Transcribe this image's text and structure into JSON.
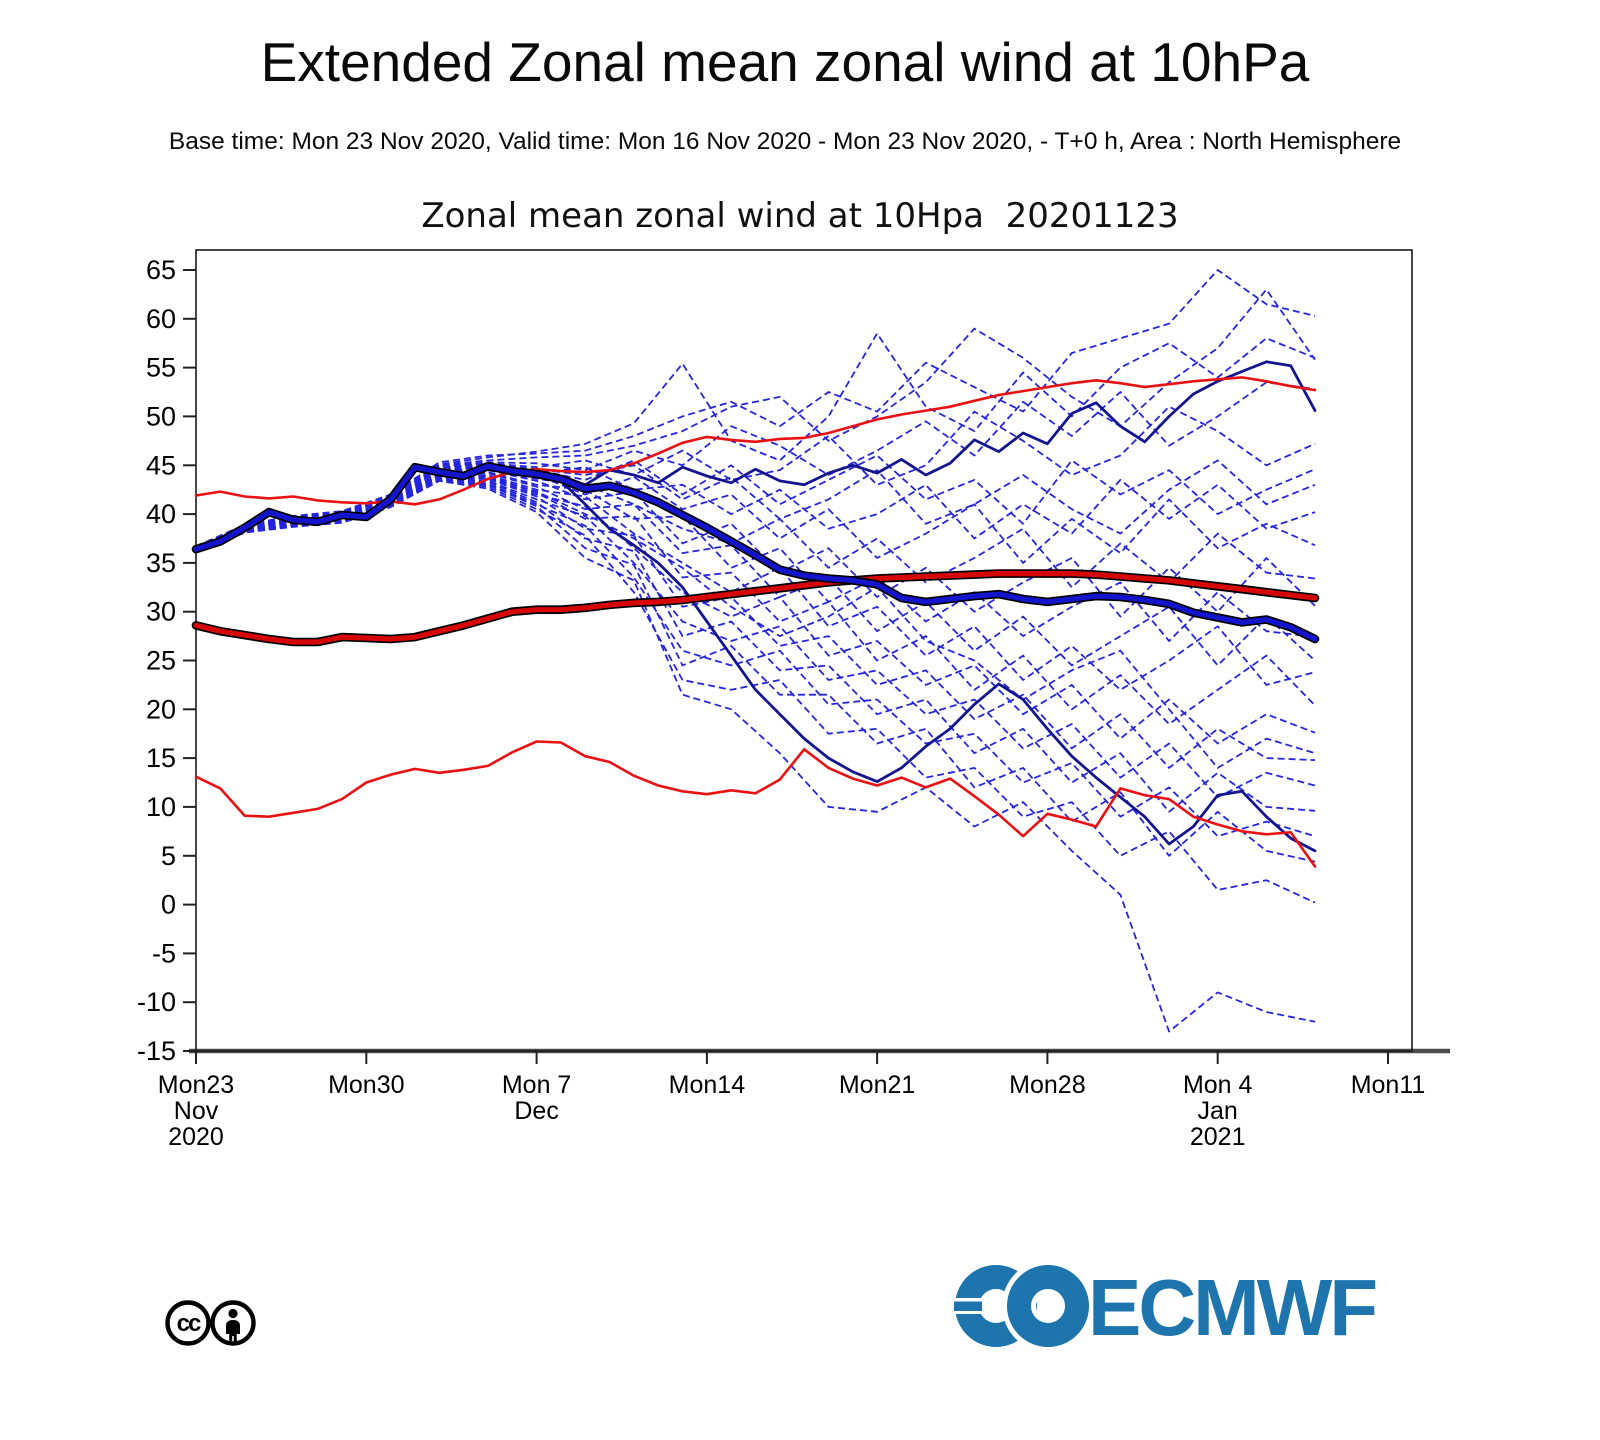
{
  "header": {
    "title": "Extended Zonal mean zonal wind at 10hPa",
    "subtitle": "Base time: Mon 23 Nov 2020, Valid time: Mon 16 Nov 2020 - Mon 23 Nov 2020, - T+0 h, Area : North Hemisphere"
  },
  "footer": {
    "license_name": "cc-by-license",
    "cc_label": "cc",
    "logo_text": "ECMWF",
    "logo_color": "#1e75ad"
  },
  "chart_data": {
    "type": "line",
    "title": "Zonal mean zonal wind at 10Hpa  20201123",
    "xlabel": "",
    "ylabel": "",
    "x_unit": "days since Mon 23 Nov 2020",
    "x_range_days": [
      0,
      49
    ],
    "ylim": [
      -15,
      65
    ],
    "ytick_step": 5,
    "grid": false,
    "legend": "none",
    "axis_color": "#1a1a1a",
    "x_axis_color": "#4d4d4d",
    "x_ticks": [
      {
        "day": 0,
        "label": "Mon23",
        "sub": [
          "Nov",
          "2020"
        ]
      },
      {
        "day": 7,
        "label": "Mon30",
        "sub": []
      },
      {
        "day": 14,
        "label": "Mon 7",
        "sub": [
          "Dec"
        ]
      },
      {
        "day": 21,
        "label": "Mon14",
        "sub": []
      },
      {
        "day": 28,
        "label": "Mon21",
        "sub": []
      },
      {
        "day": 35,
        "label": "Mon28",
        "sub": []
      },
      {
        "day": 42,
        "label": "Mon 4",
        "sub": [
          "Jan",
          "2021"
        ]
      },
      {
        "day": 49,
        "label": "Mon11",
        "sub": []
      }
    ],
    "series": [
      {
        "name": "control-b",
        "color": "#14148f",
        "width": 2.8,
        "outline": false,
        "day_step": 1,
        "values": [
          36.4,
          37.1,
          38.5,
          40.1,
          39.3,
          39.1,
          39.8,
          39.6,
          41.4,
          44.6,
          44.1,
          43.7,
          44.7,
          44.2,
          43.9,
          43.4,
          41.0,
          38.5,
          36.8,
          35.0,
          32.5,
          29.0,
          25.5,
          22.0,
          19.5,
          17.0,
          15.0,
          13.6,
          12.6,
          14.0,
          16.2,
          18.0,
          20.5,
          22.6,
          21.0,
          18.0,
          15.2,
          13.0,
          11.0,
          9.0,
          6.2,
          8.0,
          11.2,
          11.6,
          9.0,
          6.8,
          5.5
        ]
      },
      {
        "name": "control-a",
        "color": "#14148f",
        "width": 2.8,
        "outline": false,
        "day_step": 1,
        "values": [
          36.4,
          37.2,
          38.7,
          40.3,
          39.5,
          39.3,
          40.0,
          39.8,
          41.6,
          45.0,
          44.5,
          44.1,
          45.1,
          44.6,
          44.3,
          43.9,
          43.0,
          44.5,
          44.0,
          43.2,
          44.8,
          43.9,
          43.2,
          44.6,
          43.4,
          43.0,
          44.2,
          45.0,
          44.2,
          45.6,
          44.0,
          45.2,
          47.6,
          46.4,
          48.3,
          47.2,
          50.3,
          51.4,
          49.0,
          47.4,
          50.0,
          52.3,
          53.6,
          54.6,
          55.6,
          55.2,
          50.6
        ]
      },
      {
        "name": "climate-min",
        "color": "#e81212",
        "width": 2.6,
        "outline": false,
        "day_step": 1,
        "values": [
          13.1,
          11.9,
          9.1,
          9.0,
          9.4,
          9.8,
          10.8,
          12.5,
          13.3,
          13.9,
          13.5,
          13.8,
          14.2,
          15.6,
          16.7,
          16.6,
          15.2,
          14.6,
          13.2,
          12.2,
          11.6,
          11.3,
          11.7,
          11.4,
          12.8,
          15.9,
          14.0,
          12.9,
          12.2,
          13.0,
          12.0,
          12.9,
          11.1,
          9.2,
          7.0,
          9.3,
          8.7,
          8.0,
          11.9,
          11.2,
          10.8,
          9.0,
          8.2,
          7.5,
          7.2,
          7.4,
          3.9
        ]
      },
      {
        "name": "climate-max",
        "color": "#e81212",
        "width": 2.6,
        "outline": false,
        "day_step": 1,
        "values": [
          41.9,
          42.3,
          41.8,
          41.6,
          41.8,
          41.4,
          41.2,
          41.1,
          41.3,
          41.0,
          41.5,
          42.5,
          43.6,
          44.3,
          44.6,
          44.4,
          44.3,
          44.5,
          45.2,
          46.2,
          47.3,
          47.9,
          47.6,
          47.4,
          47.7,
          47.8,
          48.3,
          49.0,
          49.7,
          50.2,
          50.6,
          51.0,
          51.6,
          52.2,
          52.6,
          53.0,
          53.4,
          53.7,
          53.4,
          53.0,
          53.3,
          53.6,
          53.8,
          54.0,
          53.6,
          53.1,
          52.7
        ]
      },
      {
        "name": "climate-mean",
        "color": "#d60606",
        "width": 5.2,
        "outline": true,
        "day_step": 1,
        "values": [
          28.6,
          28.0,
          27.6,
          27.2,
          26.9,
          26.9,
          27.4,
          27.3,
          27.2,
          27.4,
          28.0,
          28.6,
          29.3,
          30.0,
          30.2,
          30.2,
          30.4,
          30.7,
          30.9,
          31.0,
          31.2,
          31.5,
          31.8,
          32.1,
          32.4,
          32.7,
          33.0,
          33.2,
          33.4,
          33.5,
          33.6,
          33.7,
          33.8,
          33.9,
          33.9,
          33.9,
          33.9,
          33.8,
          33.6,
          33.4,
          33.2,
          32.9,
          32.6,
          32.3,
          32.0,
          31.7,
          31.4
        ]
      },
      {
        "name": "ensemble-mean",
        "color": "#1414cd",
        "width": 5.2,
        "outline": true,
        "day_step": 1,
        "values": [
          36.4,
          37.2,
          38.6,
          40.2,
          39.4,
          39.2,
          39.9,
          39.7,
          41.5,
          44.8,
          44.3,
          43.9,
          44.9,
          44.4,
          44.1,
          43.6,
          42.6,
          42.9,
          42.2,
          41.2,
          39.9,
          38.6,
          37.2,
          35.8,
          34.3,
          33.7,
          33.4,
          33.2,
          32.8,
          31.4,
          31.0,
          31.3,
          31.6,
          31.8,
          31.3,
          31.0,
          31.3,
          31.6,
          31.5,
          31.2,
          30.8,
          29.9,
          29.4,
          28.9,
          29.2,
          28.4,
          27.2
        ]
      }
    ],
    "ensemble_members": {
      "name": "ensemble-members",
      "color": "#2525dc",
      "dash": "7 4",
      "width": 1.8,
      "day_step": 2,
      "values": [
        [
          36.7,
          38.9,
          39.8,
          40.3,
          42.0,
          45.3,
          46.0,
          46.2,
          46.5,
          48.0,
          50.0,
          51.5,
          49.0,
          52.5,
          50.5,
          55.5,
          53.0,
          50.5,
          56.5,
          58.0,
          59.5,
          65.0,
          61.5,
          60.3
        ],
        [
          36.6,
          38.8,
          39.7,
          40.2,
          41.9,
          45.1,
          45.8,
          46.4,
          47.2,
          49.3,
          55.4,
          47.5,
          45.5,
          50.0,
          58.5,
          51.0,
          48.5,
          54.5,
          50.0,
          55.0,
          57.5,
          54.0,
          58.0,
          56.0
        ],
        [
          36.6,
          38.8,
          39.6,
          40.1,
          41.8,
          45.0,
          45.5,
          45.8,
          46.0,
          47.0,
          48.5,
          51.0,
          52.0,
          47.5,
          50.0,
          53.5,
          59.0,
          56.0,
          52.0,
          49.0,
          53.5,
          57.0,
          63.0,
          55.8
        ],
        [
          36.5,
          38.7,
          39.6,
          40.0,
          41.7,
          44.9,
          45.3,
          45.2,
          44.5,
          46.5,
          45.0,
          49.0,
          47.0,
          44.0,
          46.5,
          49.5,
          46.0,
          51.5,
          48.0,
          52.5,
          47.0,
          50.0,
          53.5,
          52.8
        ],
        [
          36.5,
          38.7,
          39.5,
          40.0,
          41.6,
          44.8,
          45.2,
          44.8,
          45.5,
          44.0,
          46.5,
          43.5,
          44.5,
          48.0,
          43.0,
          45.0,
          50.5,
          47.5,
          44.0,
          46.0,
          51.0,
          48.5,
          45.0,
          47.2
        ],
        [
          36.5,
          38.7,
          39.5,
          40.0,
          41.7,
          44.8,
          45.1,
          44.6,
          44.0,
          45.0,
          41.5,
          43.8,
          39.5,
          41.5,
          44.5,
          39.0,
          41.0,
          44.0,
          40.5,
          38.0,
          42.5,
          45.5,
          41.0,
          43.0
        ],
        [
          36.5,
          38.6,
          39.5,
          39.9,
          41.6,
          44.7,
          45.0,
          44.5,
          43.5,
          45.5,
          42.0,
          45.0,
          41.0,
          43.5,
          46.0,
          41.5,
          43.5,
          39.0,
          45.5,
          42.0,
          44.5,
          40.0,
          42.5,
          44.6
        ],
        [
          36.4,
          38.6,
          39.4,
          39.9,
          41.5,
          44.6,
          44.9,
          44.2,
          44.8,
          42.5,
          43.0,
          40.0,
          42.5,
          38.5,
          40.0,
          43.0,
          37.5,
          41.0,
          38.0,
          43.5,
          39.5,
          43.0,
          38.5,
          40.2
        ],
        [
          36.4,
          38.6,
          39.4,
          39.8,
          41.4,
          44.5,
          44.8,
          44.0,
          42.0,
          43.8,
          40.5,
          42.0,
          37.5,
          40.5,
          35.5,
          38.0,
          41.0,
          35.0,
          39.5,
          36.0,
          41.5,
          36.5,
          39.0,
          36.8
        ],
        [
          36.4,
          38.5,
          39.3,
          39.8,
          41.4,
          44.4,
          44.6,
          43.6,
          43.0,
          41.0,
          38.5,
          37.0,
          39.5,
          34.5,
          37.5,
          33.0,
          35.5,
          38.5,
          32.5,
          37.0,
          33.0,
          38.0,
          34.0,
          33.4
        ],
        [
          36.4,
          38.5,
          39.3,
          39.7,
          41.3,
          44.3,
          44.5,
          43.4,
          41.5,
          42.3,
          37.0,
          39.0,
          34.0,
          36.5,
          31.5,
          34.5,
          30.0,
          33.0,
          35.5,
          29.5,
          34.5,
          30.0,
          35.5,
          30.6
        ],
        [
          36.3,
          38.5,
          39.2,
          39.7,
          41.3,
          44.2,
          44.3,
          43.0,
          42.5,
          39.5,
          39.8,
          34.5,
          36.5,
          31.0,
          33.5,
          29.0,
          32.0,
          27.5,
          30.5,
          33.0,
          27.0,
          32.0,
          28.0,
          27.4
        ],
        [
          36.3,
          38.4,
          39.2,
          39.6,
          41.2,
          44.1,
          44.2,
          42.8,
          40.5,
          41.0,
          36.0,
          36.8,
          31.5,
          33.5,
          28.0,
          31.0,
          26.0,
          29.5,
          24.5,
          27.5,
          30.5,
          24.5,
          29.5,
          25.0
        ],
        [
          36.3,
          38.4,
          39.1,
          39.6,
          41.2,
          44.0,
          44.0,
          42.5,
          41.8,
          38.0,
          35.0,
          32.0,
          34.5,
          28.5,
          30.5,
          25.5,
          28.5,
          23.0,
          26.5,
          22.0,
          25.0,
          28.5,
          22.5,
          23.8
        ],
        [
          36.3,
          38.4,
          39.1,
          39.6,
          41.1,
          44.0,
          43.8,
          42.3,
          40.0,
          37.5,
          34.5,
          30.5,
          27.5,
          29.5,
          32.5,
          27.0,
          25.0,
          21.0,
          24.0,
          26.0,
          20.0,
          14.0,
          17.0,
          15.5
        ],
        [
          36.3,
          38.4,
          39.1,
          39.5,
          41.1,
          43.9,
          43.9,
          42.2,
          39.5,
          39.8,
          33.5,
          34.0,
          29.0,
          31.0,
          25.0,
          27.5,
          22.0,
          25.5,
          20.0,
          23.5,
          18.5,
          22.0,
          25.5,
          20.4
        ],
        [
          36.2,
          38.3,
          39.0,
          39.5,
          41.1,
          43.9,
          43.7,
          42.0,
          40.8,
          36.5,
          32.0,
          29.5,
          31.5,
          25.5,
          27.0,
          22.5,
          24.5,
          19.5,
          22.5,
          17.0,
          21.0,
          16.5,
          19.5,
          17.6
        ],
        [
          36.2,
          38.3,
          39.0,
          39.4,
          41.0,
          43.8,
          43.6,
          41.8,
          38.5,
          37.8,
          30.5,
          31.5,
          26.5,
          27.5,
          22.5,
          24.0,
          19.0,
          21.5,
          16.0,
          19.5,
          14.0,
          18.0,
          15.0,
          14.8
        ],
        [
          36.2,
          38.3,
          39.0,
          39.4,
          41.0,
          43.7,
          43.4,
          41.5,
          39.8,
          35.0,
          29.0,
          27.0,
          28.5,
          23.0,
          24.0,
          19.5,
          21.0,
          16.0,
          18.5,
          13.0,
          16.5,
          11.0,
          13.5,
          12.2
        ],
        [
          36.2,
          38.2,
          38.9,
          39.3,
          40.9,
          43.7,
          43.3,
          41.2,
          37.5,
          36.2,
          27.5,
          29.0,
          24.0,
          24.5,
          19.5,
          21.0,
          15.5,
          18.0,
          12.5,
          15.5,
          9.5,
          13.5,
          10.0,
          9.6
        ],
        [
          36.1,
          38.2,
          38.9,
          39.3,
          40.9,
          43.6,
          43.1,
          41.0,
          38.8,
          33.5,
          26.0,
          24.5,
          26.0,
          20.5,
          21.0,
          16.5,
          17.5,
          12.5,
          14.5,
          9.0,
          12.0,
          7.0,
          8.5,
          7.0
        ],
        [
          36.1,
          38.2,
          38.8,
          39.2,
          40.8,
          43.5,
          43.0,
          40.8,
          36.5,
          34.8,
          24.5,
          26.5,
          21.5,
          21.5,
          16.5,
          18.0,
          12.0,
          14.0,
          8.5,
          11.5,
          5.0,
          9.5,
          5.5,
          4.4
        ],
        [
          36.1,
          38.1,
          38.8,
          39.2,
          40.8,
          43.5,
          42.8,
          40.5,
          37.8,
          32.0,
          23.0,
          22.0,
          23.0,
          17.5,
          18.0,
          13.0,
          14.0,
          9.0,
          10.5,
          5.0,
          7.5,
          1.5,
          2.5,
          0.2
        ],
        [
          36.1,
          38.1,
          38.7,
          39.1,
          40.7,
          43.4,
          42.6,
          40.2,
          35.5,
          33.2,
          21.5,
          20.0,
          15.5,
          10.0,
          9.5,
          12.0,
          8.0,
          10.5,
          5.5,
          1.0,
          -13.0,
          -9.0,
          -11.0,
          -12.0
        ]
      ]
    }
  }
}
